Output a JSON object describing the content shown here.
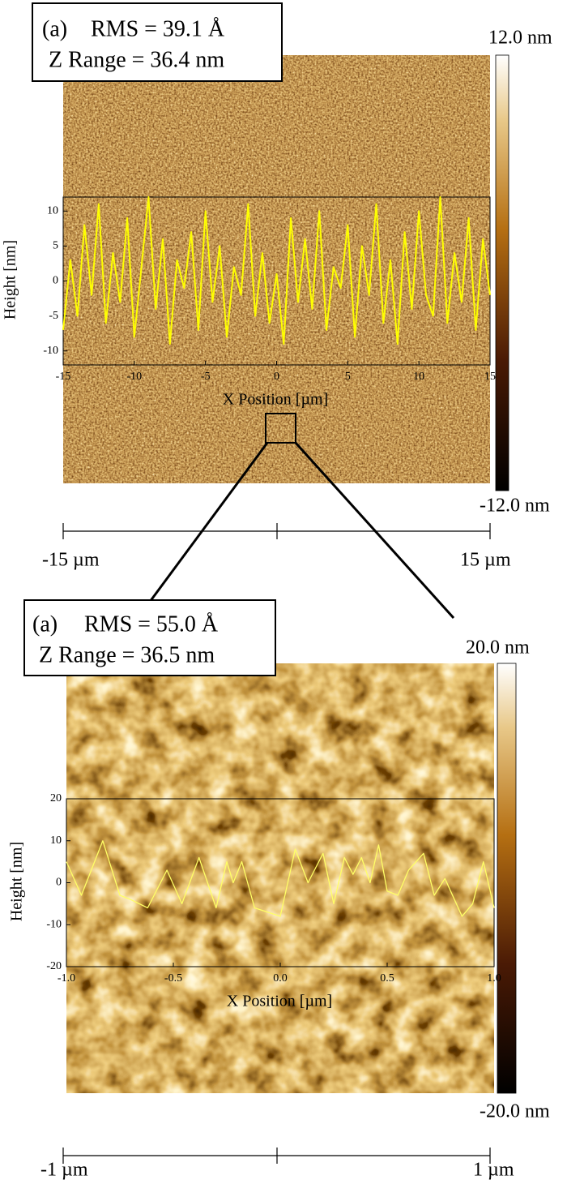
{
  "chart_data": [
    {
      "type": "line",
      "panel_label": "(a)",
      "annotation": [
        "RMS = 39.1 Å",
        "Z Range = 36.4 nm"
      ],
      "colorbar_labels": [
        "12.0 nm",
        "-12.0 nm"
      ],
      "scale_bar_labels": [
        "-15 µm",
        "15 µm"
      ],
      "x_label": "X Position [µm]",
      "y_label": "Height [nm]",
      "xlim": [
        -15,
        15
      ],
      "xticks": [
        -15,
        -10,
        -5,
        0,
        5,
        10,
        15
      ],
      "ylim": [
        -12,
        12
      ],
      "yticks": [
        10,
        5,
        0,
        -5,
        -10
      ],
      "color": "#ffff00",
      "x": [
        -15,
        -14.5,
        -14,
        -13.5,
        -13,
        -12.5,
        -12,
        -11.5,
        -11,
        -10.5,
        -10,
        -9.5,
        -9,
        -8.5,
        -8,
        -7.5,
        -7,
        -6.5,
        -6,
        -5.5,
        -5,
        -4.5,
        -4,
        -3.5,
        -3,
        -2.5,
        -2,
        -1.5,
        -1,
        -0.5,
        0,
        0.5,
        1,
        1.5,
        2,
        2.5,
        3,
        3.5,
        4,
        4.5,
        5,
        5.5,
        6,
        6.5,
        7,
        7.5,
        8,
        8.5,
        9,
        9.5,
        10,
        10.5,
        11,
        11.5,
        12,
        12.5,
        13,
        13.5,
        14,
        14.5,
        15
      ],
      "values": [
        -7,
        3,
        -5,
        8,
        -2,
        11,
        -6,
        4,
        -3,
        9,
        -8,
        2,
        12,
        -4,
        6,
        -9,
        3,
        -1,
        7,
        -7,
        10,
        -3,
        5,
        -8,
        2,
        -2,
        11,
        -5,
        4,
        -6,
        1,
        -9,
        9,
        -3,
        6,
        -4,
        10,
        -7,
        2,
        -1,
        8,
        -8,
        5,
        -2,
        11,
        -6,
        3,
        -9,
        7,
        -4,
        10,
        -2,
        -5,
        12,
        -6,
        4,
        -3,
        9,
        -7,
        6,
        -2
      ]
    },
    {
      "type": "line",
      "panel_label": "(a)",
      "annotation": [
        "RMS = 55.0 Å",
        "Z Range = 36.5 nm"
      ],
      "colorbar_labels": [
        "20.0 nm",
        "-20.0 nm"
      ],
      "scale_bar_labels": [
        "-1 µm",
        "1 µm"
      ],
      "x_label": "X Position [µm]",
      "y_label": "Height [nm]",
      "xlim": [
        -1,
        1
      ],
      "xticks": [
        {
          "value": -1,
          "label": "-1.0"
        },
        -0.5,
        {
          "value": 0,
          "label": "0.0"
        },
        0.5,
        {
          "value": 1,
          "label": "1.0"
        }
      ],
      "ylim": [
        -20,
        20
      ],
      "yticks": [
        20,
        10,
        0,
        -10,
        -20
      ],
      "color": "#ffff66",
      "x": [
        -1,
        -0.93,
        -0.83,
        -0.75,
        -0.7,
        -0.62,
        -0.53,
        -0.46,
        -0.38,
        -0.3,
        -0.25,
        -0.22,
        -0.18,
        -0.12,
        0,
        0.07,
        0.13,
        0.2,
        0.25,
        0.3,
        0.34,
        0.38,
        0.42,
        0.46,
        0.5,
        0.55,
        0.6,
        0.67,
        0.72,
        0.77,
        0.85,
        0.9,
        0.95,
        1
      ],
      "values": [
        5,
        -3,
        10,
        -3,
        -4,
        -6,
        3,
        -5,
        6,
        -6,
        5,
        0,
        5,
        -6,
        -8,
        8,
        0,
        7,
        -5,
        6,
        2,
        6,
        0,
        9,
        -2,
        -3,
        3,
        7,
        -3,
        1,
        -8,
        -5,
        5,
        -6
      ]
    }
  ]
}
